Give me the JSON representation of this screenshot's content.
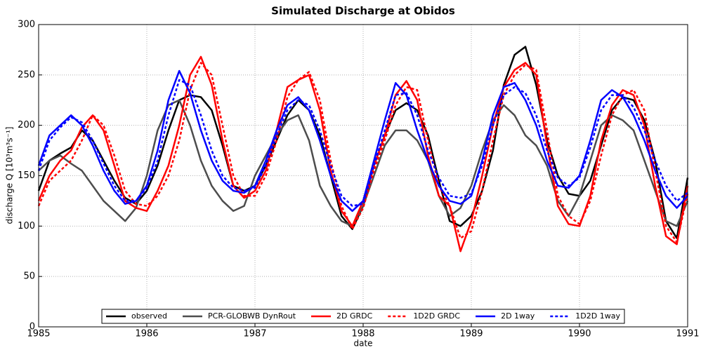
{
  "chart_data": {
    "type": "line",
    "title": "Simulated Discharge at Obidos",
    "xlabel": "date",
    "ylabel": "discharge Q [10³m³s⁻¹]",
    "x": [
      1985,
      1985.1,
      1985.2,
      1985.3,
      1985.4,
      1985.5,
      1985.6,
      1985.7,
      1985.8,
      1985.9,
      1986,
      1986.1,
      1986.2,
      1986.3,
      1986.4,
      1986.5,
      1986.6,
      1986.7,
      1986.8,
      1986.9,
      1987,
      1987.1,
      1987.2,
      1987.3,
      1987.4,
      1987.5,
      1987.6,
      1987.7,
      1987.8,
      1987.9,
      1988,
      1988.1,
      1988.2,
      1988.3,
      1988.4,
      1988.5,
      1988.6,
      1988.7,
      1988.8,
      1988.9,
      1989,
      1989.1,
      1989.2,
      1989.3,
      1989.4,
      1989.5,
      1989.6,
      1989.7,
      1989.8,
      1989.9,
      1990,
      1990.1,
      1990.2,
      1990.3,
      1990.4,
      1990.5,
      1990.6,
      1990.7,
      1990.8,
      1990.9,
      1991
    ],
    "series": [
      {
        "name": "observed",
        "color": "#000000",
        "style": "solid",
        "values": [
          135,
          165,
          172,
          178,
          195,
          185,
          165,
          145,
          128,
          122,
          135,
          160,
          195,
          225,
          230,
          228,
          215,
          180,
          140,
          135,
          140,
          160,
          185,
          210,
          225,
          215,
          190,
          150,
          110,
          97,
          120,
          160,
          190,
          215,
          222,
          215,
          190,
          145,
          105,
          100,
          110,
          135,
          175,
          240,
          270,
          278,
          240,
          185,
          150,
          132,
          130,
          145,
          180,
          215,
          228,
          225,
          205,
          165,
          105,
          88,
          148
        ]
      },
      {
        "name": "PCR-GLOBWB DynRout",
        "color": "#4d4d4d",
        "style": "solid",
        "values": [
          155,
          165,
          170,
          162,
          155,
          140,
          125,
          115,
          105,
          118,
          150,
          195,
          220,
          225,
          200,
          165,
          140,
          125,
          115,
          120,
          150,
          170,
          190,
          205,
          210,
          185,
          140,
          120,
          105,
          100,
          120,
          150,
          180,
          195,
          195,
          185,
          165,
          130,
          110,
          118,
          140,
          175,
          205,
          220,
          210,
          190,
          180,
          160,
          125,
          110,
          130,
          165,
          200,
          210,
          205,
          195,
          165,
          135,
          105,
          100,
          125
        ]
      },
      {
        "name": "2D GRDC",
        "color": "#ff0000",
        "style": "solid",
        "values": [
          125,
          150,
          165,
          175,
          198,
          210,
          195,
          160,
          125,
          118,
          115,
          135,
          160,
          200,
          250,
          268,
          240,
          185,
          140,
          128,
          135,
          155,
          195,
          238,
          245,
          250,
          215,
          155,
          115,
          100,
          125,
          160,
          190,
          230,
          244,
          225,
          170,
          130,
          120,
          75,
          105,
          150,
          200,
          238,
          255,
          262,
          250,
          180,
          120,
          102,
          100,
          130,
          185,
          220,
          235,
          230,
          200,
          140,
          90,
          82,
          140
        ]
      },
      {
        "name": "1D2D GRDC",
        "color": "#ff0000",
        "style": "dotted",
        "values": [
          120,
          145,
          155,
          165,
          185,
          210,
          200,
          170,
          135,
          122,
          120,
          130,
          150,
          185,
          235,
          262,
          250,
          200,
          150,
          130,
          130,
          150,
          185,
          228,
          245,
          253,
          225,
          165,
          120,
          97,
          118,
          155,
          185,
          220,
          238,
          235,
          185,
          140,
          120,
          88,
          95,
          135,
          185,
          230,
          250,
          260,
          255,
          195,
          130,
          110,
          102,
          125,
          170,
          210,
          230,
          235,
          215,
          155,
          100,
          84,
          132
        ]
      },
      {
        "name": "2D 1way",
        "color": "#0000ff",
        "style": "solid",
        "values": [
          160,
          190,
          200,
          210,
          200,
          180,
          155,
          135,
          122,
          125,
          140,
          175,
          225,
          254,
          232,
          195,
          165,
          145,
          135,
          133,
          140,
          165,
          195,
          220,
          228,
          215,
          185,
          150,
          125,
          115,
          125,
          165,
          205,
          242,
          230,
          195,
          165,
          140,
          125,
          122,
          130,
          165,
          210,
          238,
          242,
          225,
          200,
          165,
          140,
          138,
          150,
          185,
          225,
          235,
          228,
          210,
          185,
          155,
          130,
          118,
          130
        ]
      },
      {
        "name": "1D2D 1way",
        "color": "#0000ff",
        "style": "dotted",
        "values": [
          155,
          185,
          198,
          208,
          203,
          185,
          162,
          140,
          125,
          125,
          138,
          165,
          210,
          245,
          240,
          210,
          175,
          150,
          138,
          135,
          138,
          160,
          190,
          215,
          225,
          220,
          195,
          160,
          130,
          120,
          122,
          160,
          195,
          230,
          232,
          210,
          175,
          148,
          130,
          128,
          132,
          160,
          200,
          230,
          238,
          232,
          210,
          175,
          148,
          140,
          148,
          178,
          215,
          230,
          230,
          218,
          195,
          165,
          140,
          125,
          133
        ]
      }
    ],
    "xlim": [
      1985,
      1991
    ],
    "xticks": [
      1985,
      1986,
      1987,
      1988,
      1989,
      1990,
      1991
    ],
    "ylim": [
      0,
      300
    ],
    "yticks": [
      0,
      50,
      100,
      150,
      200,
      250,
      300
    ],
    "grid": true,
    "legend": "lower center"
  }
}
